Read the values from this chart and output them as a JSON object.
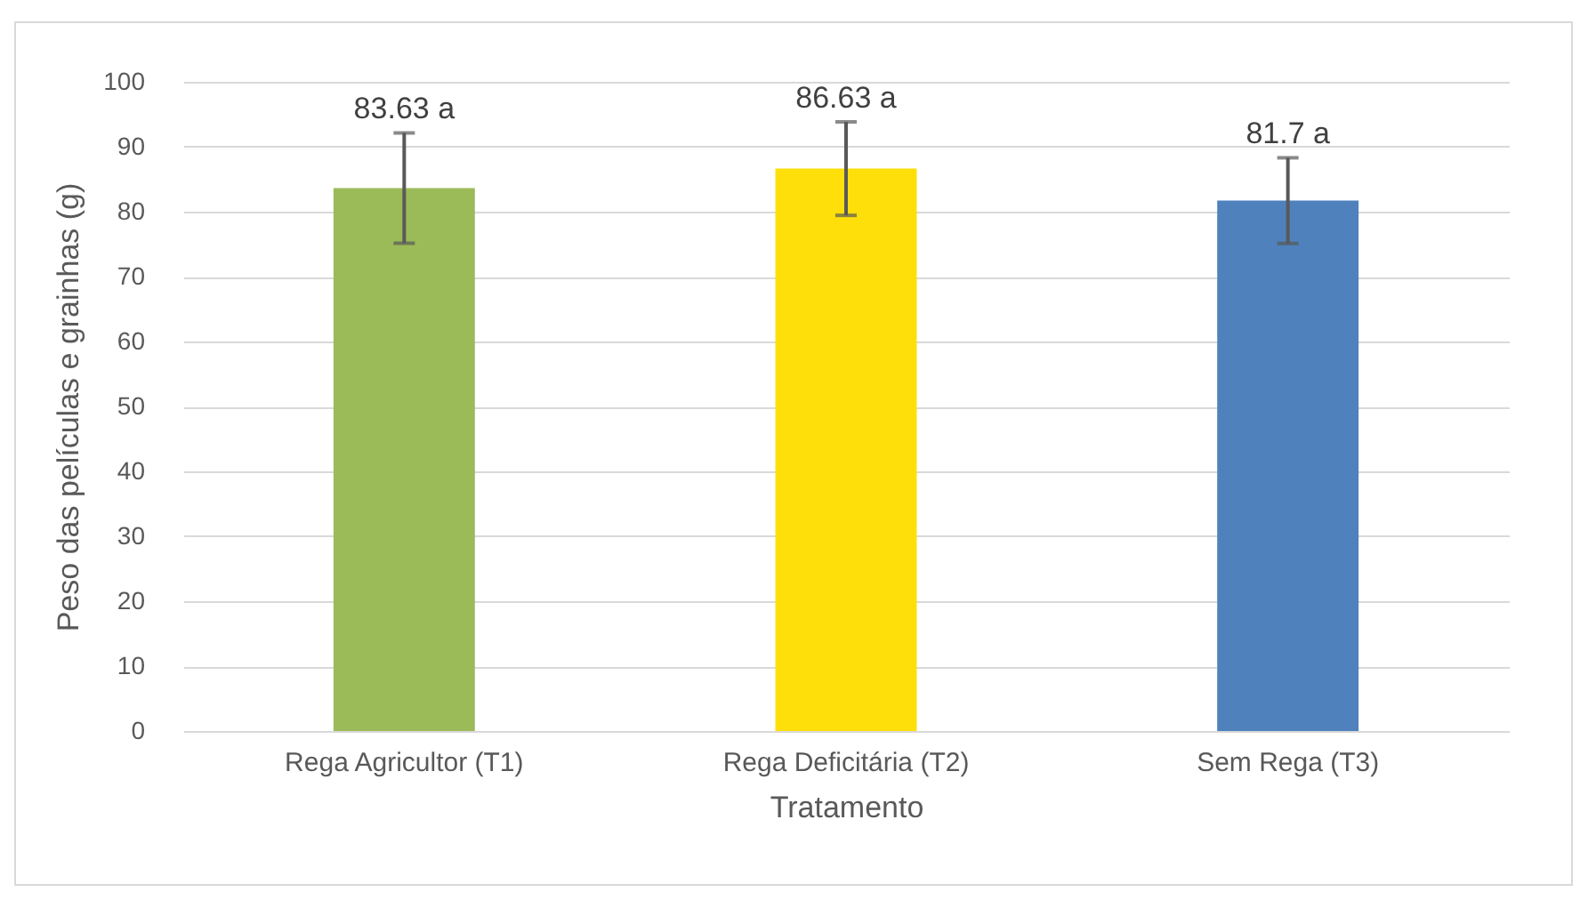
{
  "chart_data": {
    "type": "bar",
    "xlabel": "Tratamento",
    "ylabel": "Peso das películas e grainhas (g)",
    "categories": [
      "Rega Agricultor (T1)",
      "Rega Deficitária (T2)",
      "Sem Rega (T3)"
    ],
    "values": [
      83.63,
      86.63,
      81.7
    ],
    "colors": [
      "#9bbb59",
      "#ffdf0a",
      "#4f81bd"
    ],
    "errors": [
      8.5,
      7.2,
      6.6
    ],
    "value_labels": [
      "83.63 a",
      "86.63 a",
      "81.7 a"
    ],
    "ylim": [
      0,
      100
    ],
    "yticks": [
      0,
      10,
      20,
      30,
      40,
      50,
      60,
      70,
      80,
      90,
      100
    ],
    "grid": "y"
  }
}
